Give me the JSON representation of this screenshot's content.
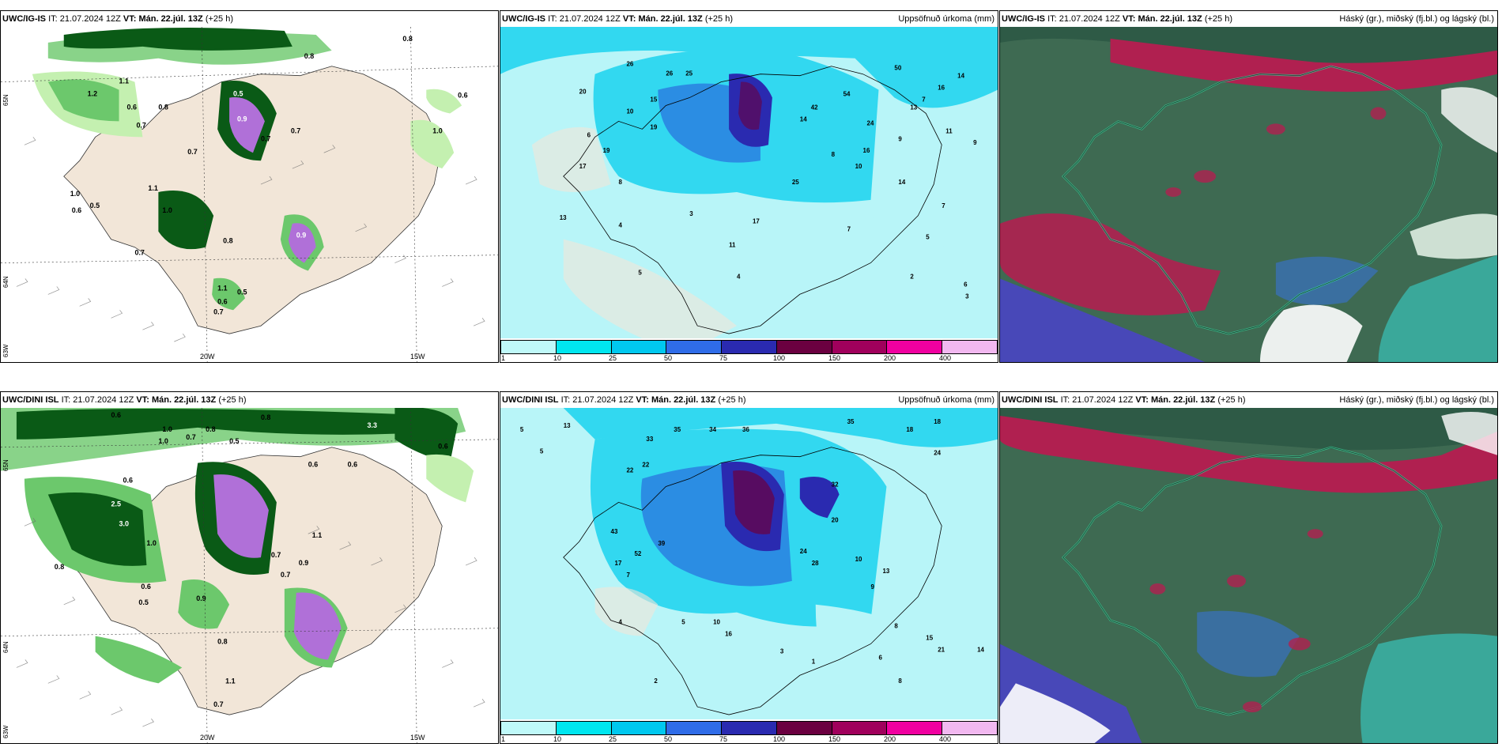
{
  "panels": [
    {
      "model": "UWC/IG-IS",
      "it_label": "IT:",
      "it": "21.07.2024 12Z",
      "vt_label": "VT:",
      "vt": "Mán. 22.júl. 13Z",
      "lead": "(+25 h)",
      "title_right": "",
      "labels": [
        "0.8",
        "0.8",
        "0.6",
        "0.5",
        "1.1",
        "0.6",
        "1.0",
        "0.7",
        "0.7",
        "0.7",
        "0.8",
        "1.0",
        "0.7",
        "0.5",
        "1.1",
        "0.6",
        "1.0",
        "0.7",
        "0.9",
        "0.8",
        "1.1",
        "0.6",
        "0.5",
        "0.7",
        "0.9",
        "1.2"
      ]
    },
    {
      "model": "UWC/IG-IS",
      "it_label": "IT:",
      "it": "21.07.2024 12Z",
      "vt_label": "VT:",
      "vt": "Mán. 22.júl. 13Z",
      "lead": "(+25 h)",
      "title_right": "Uppsöfnuð úrkoma (mm)",
      "labels": [
        "26",
        "26",
        "25",
        "20",
        "17",
        "15",
        "10",
        "19",
        "50",
        "14",
        "16",
        "54",
        "42",
        "24",
        "13",
        "11",
        "7",
        "10",
        "14",
        "16",
        "17",
        "14",
        "25",
        "9",
        "8",
        "13",
        "19",
        "6",
        "7",
        "9",
        "8",
        "4",
        "3",
        "2",
        "5",
        "7",
        "11",
        "6",
        "4",
        "3",
        "5"
      ]
    },
    {
      "model": "UWC/IG-IS",
      "it_label": "IT:",
      "it": "21.07.2024 12Z",
      "vt_label": "VT:",
      "vt": "Mán. 22.júl. 13Z",
      "lead": "(+25 h)",
      "title_right": "Háský (gr.), miðský (fj.bl.) og lágský (bl.)",
      "labels": []
    },
    {
      "model": "UWC/DINI ISL",
      "it_label": "IT:",
      "it": "21.07.2024 12Z",
      "vt_label": "VT:",
      "vt": "Mán. 22.júl. 13Z",
      "lead": "(+25 h)",
      "title_right": "",
      "labels": [
        "0.6",
        "1.0",
        "0.8",
        "0.6",
        "0.5",
        "0.8",
        "3.3",
        "0.6",
        "0.6",
        "1.0",
        "2.5",
        "3.0",
        "0.6",
        "0.7",
        "1.0",
        "0.8",
        "0.9",
        "0.5",
        "0.8",
        "0.7",
        "1.1",
        "0.7",
        "0.6",
        "0.7",
        "0.9",
        "1.1"
      ]
    },
    {
      "model": "UWC/DINI ISL",
      "it_label": "IT:",
      "it": "21.07.2024 12Z",
      "vt_label": "VT:",
      "vt": "Mán. 22.júl. 13Z",
      "lead": "(+25 h)",
      "title_right": "Uppsöfnuð úrkoma (mm)",
      "labels": [
        "5",
        "13",
        "35",
        "34",
        "36",
        "35",
        "18",
        "5",
        "33",
        "24",
        "22",
        "32",
        "43",
        "52",
        "39",
        "22",
        "17",
        "20",
        "10",
        "24",
        "28",
        "13",
        "7",
        "4",
        "5",
        "8",
        "10",
        "16",
        "15",
        "21",
        "3",
        "2",
        "1",
        "6",
        "8",
        "18",
        "9",
        "14"
      ]
    },
    {
      "model": "UWC/DINI ISL",
      "it_label": "IT:",
      "it": "21.07.2024 12Z",
      "vt_label": "VT:",
      "vt": "Mán. 22.júl. 13Z",
      "lead": "(+25 h)",
      "title_right": "Háský (gr.), miðský (fj.bl.) og lágský (bl.)",
      "labels": []
    }
  ],
  "axis": {
    "lon_20": "20W",
    "lon_15": "15W",
    "lat_65": "65N",
    "lat_64": "64N",
    "lat_63": "63W"
  },
  "colorbar": {
    "ticks": [
      "1",
      "10",
      "25",
      "50",
      "75",
      "100",
      "150",
      "200",
      "400"
    ],
    "colors": [
      "#bff9f9",
      "#00e6ef",
      "#00c8ef",
      "#2f6ce8",
      "#2a2ab0",
      "#6b0040",
      "#a0005c",
      "#f000a0",
      "#f2b8f0"
    ]
  },
  "palette": {
    "land": "#f2e6d8",
    "green_light": "#c4f0b0",
    "green_mid": "#6cc86c",
    "green_dark": "#0a5a16",
    "violet": "#b070d8",
    "cyan_light": "#b8f5f8",
    "cyan": "#32d8f0",
    "blue": "#2a80e0",
    "cloud_base": "#3e6a52",
    "cloud_red": "#b02050",
    "cloud_blue": "#4848b8",
    "cloud_teal": "#3aa89a"
  }
}
